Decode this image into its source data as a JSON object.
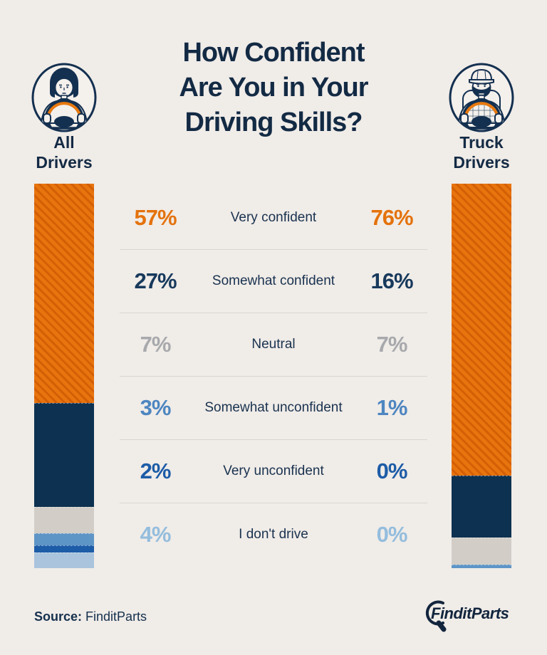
{
  "page": {
    "background": "#f0ece8"
  },
  "title": {
    "line1": "How Confident",
    "line2": "Are You in Your",
    "line3": "Driving Skills?"
  },
  "left_group": {
    "label_line1": "All",
    "label_line2": "Drivers",
    "icon": "car-driver-icon"
  },
  "right_group": {
    "label_line1": "Truck",
    "label_line2": "Drivers",
    "icon": "truck-driver-icon"
  },
  "chart_data": {
    "type": "bar",
    "subtype": "stacked-vertical-comparison",
    "title": "How Confident Are You in Your Driving Skills?",
    "unit": "%",
    "categories": [
      "Very confident",
      "Somewhat confident",
      "Neutral",
      "Somewhat unconfident",
      "Very unconfident",
      "I don't drive"
    ],
    "series": [
      {
        "name": "All Drivers",
        "values": [
          57,
          27,
          7,
          3,
          2,
          4
        ]
      },
      {
        "name": "Truck Drivers",
        "values": [
          76,
          16,
          7,
          1,
          0,
          0
        ]
      }
    ],
    "segment_colors": [
      "#e8740e",
      "#0d3150",
      "#d2cec7",
      "#5e95c7",
      "#1d5ca7",
      "#a9c4dc"
    ],
    "hatch": {
      "applies_to_segment": 0,
      "base": "#e8740e",
      "stripe": "#d35f06"
    },
    "ylim": [
      0,
      100
    ],
    "legend_position": "center-table"
  },
  "rows": [
    {
      "left": "57%",
      "label": "Very confident",
      "right": "76%",
      "value_color": "#e4720c"
    },
    {
      "left": "27%",
      "label": "Somewhat confident",
      "right": "16%",
      "value_color": "#17395c"
    },
    {
      "left": "7%",
      "label": "Neutral",
      "right": "7%",
      "value_color": "#a7a9ac"
    },
    {
      "left": "3%",
      "label": "Somewhat unconfident",
      "right": "1%",
      "value_color": "#4d86c0"
    },
    {
      "left": "2%",
      "label": "Very unconfident",
      "right": "0%",
      "value_color": "#1d5ca7"
    },
    {
      "left": "4%",
      "label": "I don't drive",
      "right": "0%",
      "value_color": "#94bddd"
    }
  ],
  "source": {
    "label_bold": "Source:",
    "label_rest": " FinditParts"
  },
  "logo": {
    "text": "FinditParts"
  }
}
